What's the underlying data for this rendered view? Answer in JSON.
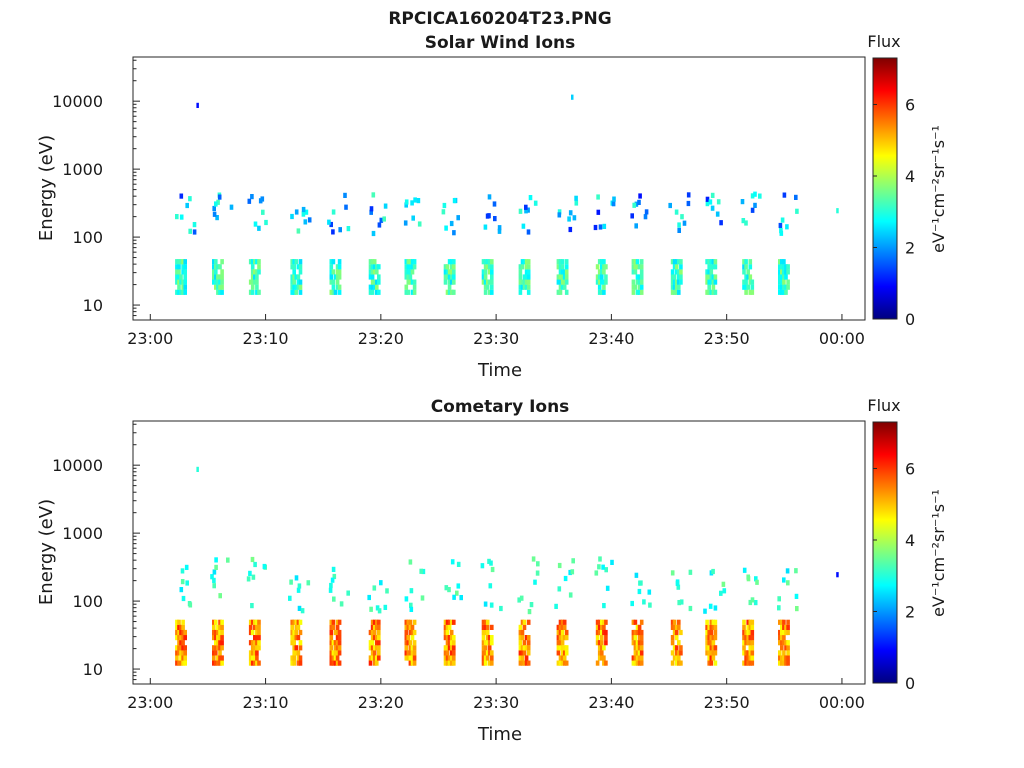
{
  "figure": {
    "title": "RPCICA160204T23.PNG"
  },
  "chart_data": [
    {
      "type": "heatmap",
      "title": "Solar Wind Ions",
      "xlabel": "Time",
      "ylabel": "Energy (eV)",
      "x_range": [
        "23:00",
        "00:00"
      ],
      "x_ticks": [
        "23:00",
        "23:10",
        "23:20",
        "23:30",
        "23:40",
        "23:50",
        "00:00"
      ],
      "y_scale": "log",
      "y_ticks": [
        "10",
        "100",
        "1000",
        "10000"
      ],
      "colorbar": {
        "title": "Flux",
        "unit": "eV⁻¹cm⁻²sr⁻¹s⁻¹",
        "range": [
          0,
          7.3
        ],
        "ticks": [
          "0",
          "2",
          "4",
          "6"
        ]
      },
      "pattern": {
        "burst_minutes": [
          2.5,
          5.7,
          8.9,
          12.5,
          15.9,
          19.3,
          22.4,
          25.8,
          29.1,
          32.3,
          35.6,
          39.0,
          42.1,
          45.5,
          48.5,
          51.7,
          54.8
        ],
        "main_band": {
          "log_energy": [
            1.15,
            1.6
          ],
          "flux": [
            2.5,
            3.8
          ]
        },
        "upper_band": {
          "log_energy": [
            2.0,
            2.6
          ],
          "flux": [
            1.0,
            3.3
          ]
        },
        "sparse_pixels": [
          {
            "minute": 4.0,
            "log_energy": 3.9,
            "flux": 1.0
          },
          {
            "minute": 36.5,
            "log_energy": 4.02,
            "flux": 2.4
          },
          {
            "minute": 59.5,
            "log_energy": 2.35,
            "flux": 3.0
          }
        ]
      }
    },
    {
      "type": "heatmap",
      "title": "Cometary Ions",
      "xlabel": "Time",
      "ylabel": "Energy (eV)",
      "x_range": [
        "23:00",
        "00:00"
      ],
      "x_ticks": [
        "23:00",
        "23:10",
        "23:20",
        "23:30",
        "23:40",
        "23:50",
        "00:00"
      ],
      "y_scale": "log",
      "y_ticks": [
        "10",
        "100",
        "1000",
        "10000"
      ],
      "colorbar": {
        "title": "Flux",
        "unit": "eV⁻¹cm⁻²sr⁻¹s⁻¹",
        "range": [
          0,
          7.3
        ],
        "ticks": [
          "0",
          "2",
          "4",
          "6"
        ]
      },
      "pattern": {
        "burst_minutes": [
          2.5,
          5.7,
          8.9,
          12.5,
          15.9,
          19.3,
          22.4,
          25.8,
          29.1,
          32.3,
          35.6,
          39.0,
          42.1,
          45.5,
          48.5,
          51.7,
          54.8
        ],
        "main_band": {
          "log_energy": [
            1.05,
            1.65
          ],
          "flux": [
            4.5,
            6.2
          ]
        },
        "upper_band": {
          "log_energy": [
            1.8,
            2.6
          ],
          "flux": [
            2.5,
            3.6
          ]
        },
        "sparse_pixels": [
          {
            "minute": 4.0,
            "log_energy": 3.9,
            "flux": 3.0
          },
          {
            "minute": 59.5,
            "log_energy": 2.35,
            "flux": 1.0
          }
        ]
      }
    }
  ]
}
